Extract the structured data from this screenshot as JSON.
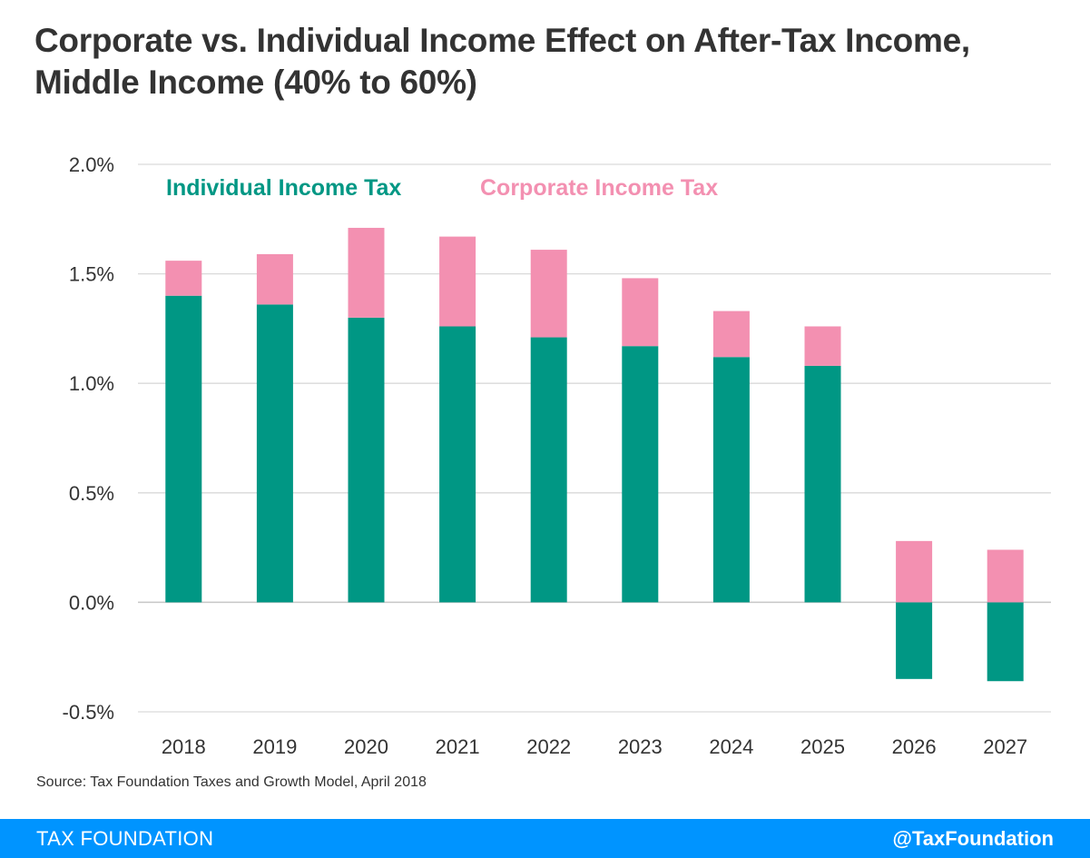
{
  "title": "Corporate vs. Individual Income Effect on After-Tax Income, Middle Income (40% to 60%)",
  "source": "Source: Tax Foundation Taxes and Growth Model, April 2018",
  "footer": {
    "brand": "TAX FOUNDATION",
    "handle": "@TaxFoundation"
  },
  "colors": {
    "individual": "#009784",
    "corporate": "#f390b1",
    "grid": "#d9d9d9",
    "axis_text": "#333333",
    "footer_bg": "#0094ff"
  },
  "chart_data": {
    "type": "bar",
    "stacked": true,
    "categories": [
      "2018",
      "2019",
      "2020",
      "2021",
      "2022",
      "2023",
      "2024",
      "2025",
      "2026",
      "2027"
    ],
    "series": [
      {
        "name": "Individual Income Tax",
        "values": [
          1.4,
          1.36,
          1.3,
          1.26,
          1.21,
          1.17,
          1.12,
          1.08,
          -0.35,
          -0.36
        ]
      },
      {
        "name": "Corporate Income Tax",
        "values": [
          0.16,
          0.23,
          0.41,
          0.41,
          0.4,
          0.31,
          0.21,
          0.18,
          0.28,
          0.24
        ]
      }
    ],
    "ylim": [
      -0.5,
      2.0
    ],
    "yticks": [
      "2.0%",
      "1.5%",
      "1.0%",
      "0.5%",
      "0.0%",
      "-0.5%"
    ],
    "ytick_values": [
      2.0,
      1.5,
      1.0,
      0.5,
      0.0,
      -0.5
    ],
    "grid": true,
    "legend": "top-left"
  }
}
